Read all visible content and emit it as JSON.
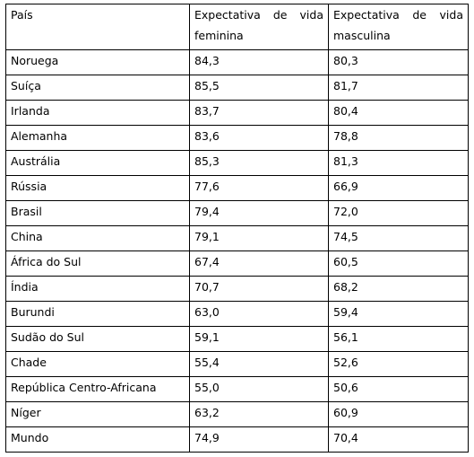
{
  "table": {
    "header": [
      "País",
      "Expectativa de vida feminina",
      "Expectativa de vida masculina"
    ],
    "rows": [
      [
        "Noruega",
        "84,3",
        "80,3"
      ],
      [
        "Suíça",
        "85,5",
        "81,7"
      ],
      [
        "Irlanda",
        "83,7",
        "80,4"
      ],
      [
        "Alemanha",
        "83,6",
        "78,8"
      ],
      [
        "Austrália",
        "85,3",
        "81,3"
      ],
      [
        "Rússia",
        "77,6",
        "66,9"
      ],
      [
        "Brasil",
        "79,4",
        "72,0"
      ],
      [
        "China",
        "79,1",
        "74,5"
      ],
      [
        "África do Sul",
        "67,4",
        "60,5"
      ],
      [
        "Índia",
        "70,7",
        "68,2"
      ],
      [
        "Burundi",
        "63,0",
        "59,4"
      ],
      [
        "Sudão do Sul",
        "59,1",
        "56,1"
      ],
      [
        "Chade",
        "55,4",
        "52,6"
      ],
      [
        "República Centro-Africana",
        "55,0",
        "50,6"
      ],
      [
        "Níger",
        "63,2",
        "60,9"
      ],
      [
        "Mundo",
        "74,9",
        "70,4"
      ]
    ]
  }
}
